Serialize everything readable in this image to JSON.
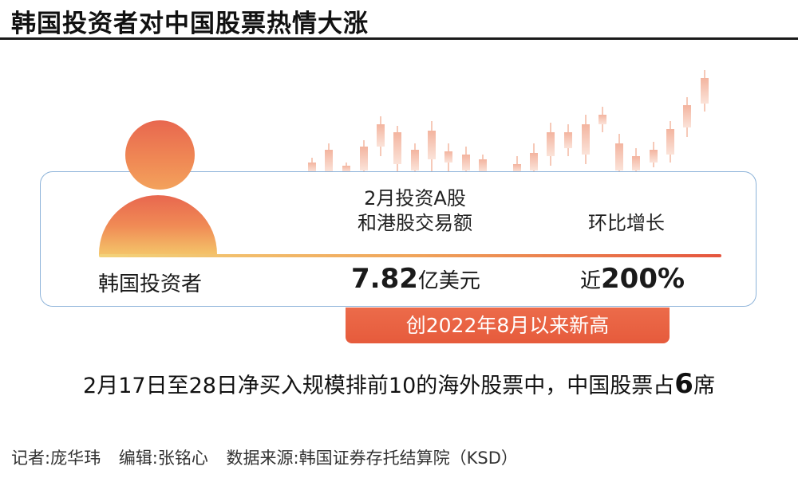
{
  "header": {
    "title": "韩国投资者对中国股票热情大涨"
  },
  "card": {
    "col1_header": "韩国投资者",
    "col2_header_line1": "2月投资A股",
    "col2_header_line2": "和港股交易额",
    "col3_header": "环比增长",
    "amount_number": "7.82",
    "amount_unit": "亿美元",
    "growth_prefix": "近",
    "growth_number": "200%"
  },
  "banner": {
    "text": "创2022年8月以来新高"
  },
  "note": {
    "text_before": "2月17日至28日净买入规模排前10的海外股票中，中国股票占",
    "count": "6",
    "text_after": "席"
  },
  "credits": {
    "reporter": "记者:庞华玮",
    "editor": "编辑:张铭心",
    "source": "数据来源:韩国证券存托结算院（KSD）"
  },
  "colors": {
    "accent_red": "#e65b3c",
    "accent_orange": "#f08a55",
    "accent_yellow": "#f3d37a",
    "card_border": "#8db3d9",
    "candle_light": "#f6c9b8"
  }
}
